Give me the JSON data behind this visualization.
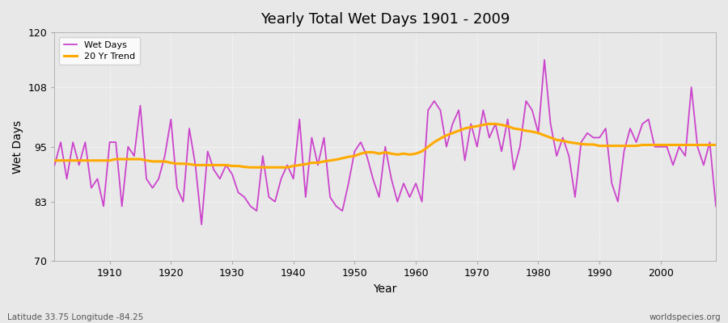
{
  "title": "Yearly Total Wet Days 1901 - 2009",
  "xlabel": "Year",
  "ylabel": "Wet Days",
  "subtitle_left": "Latitude 33.75 Longitude -84.25",
  "subtitle_right": "worldspecies.org",
  "ylim": [
    70,
    120
  ],
  "yticks": [
    70,
    83,
    95,
    108,
    120
  ],
  "line_color": "#cc44cc",
  "trend_color": "#ffaa00",
  "fig_bg_color": "#e8e8e8",
  "plot_bg_color": "#e8e8e8",
  "grid_color": "#ffffff",
  "years": [
    1901,
    1902,
    1903,
    1904,
    1905,
    1906,
    1907,
    1908,
    1909,
    1910,
    1911,
    1912,
    1913,
    1914,
    1915,
    1916,
    1917,
    1918,
    1919,
    1920,
    1921,
    1922,
    1923,
    1924,
    1925,
    1926,
    1927,
    1928,
    1929,
    1930,
    1931,
    1932,
    1933,
    1934,
    1935,
    1936,
    1937,
    1938,
    1939,
    1940,
    1941,
    1942,
    1943,
    1944,
    1945,
    1946,
    1947,
    1948,
    1949,
    1950,
    1951,
    1952,
    1953,
    1954,
    1955,
    1956,
    1957,
    1958,
    1959,
    1960,
    1961,
    1962,
    1963,
    1964,
    1965,
    1966,
    1967,
    1968,
    1969,
    1970,
    1971,
    1972,
    1973,
    1974,
    1975,
    1976,
    1977,
    1978,
    1979,
    1980,
    1981,
    1982,
    1983,
    1984,
    1985,
    1986,
    1987,
    1988,
    1989,
    1990,
    1991,
    1992,
    1993,
    1994,
    1995,
    1996,
    1997,
    1998,
    1999,
    2000,
    2001,
    2002,
    2003,
    2004,
    2005,
    2006,
    2007,
    2008,
    2009
  ],
  "wet_days": [
    91,
    96,
    88,
    96,
    91,
    96,
    86,
    88,
    82,
    96,
    96,
    82,
    95,
    93,
    104,
    88,
    86,
    88,
    93,
    101,
    86,
    83,
    99,
    91,
    78,
    94,
    90,
    88,
    91,
    89,
    85,
    84,
    82,
    81,
    93,
    84,
    83,
    88,
    91,
    88,
    101,
    84,
    97,
    91,
    97,
    84,
    82,
    81,
    87,
    94,
    96,
    93,
    88,
    84,
    95,
    88,
    83,
    87,
    84,
    87,
    83,
    103,
    105,
    103,
    95,
    100,
    103,
    92,
    100,
    95,
    103,
    97,
    100,
    94,
    101,
    90,
    95,
    105,
    103,
    98,
    114,
    100,
    93,
    97,
    93,
    84,
    96,
    98,
    97,
    97,
    99,
    87,
    83,
    94,
    99,
    96,
    100,
    101,
    95,
    95,
    95,
    91,
    95,
    93,
    108,
    95,
    91,
    96,
    82
  ],
  "trend_values": [
    92.0,
    92.0,
    92.0,
    92.0,
    92.0,
    92.0,
    92.0,
    92.0,
    92.0,
    92.0,
    92.3,
    92.3,
    92.3,
    92.3,
    92.3,
    92.0,
    91.8,
    91.8,
    91.8,
    91.5,
    91.3,
    91.3,
    91.2,
    91.0,
    91.0,
    91.0,
    91.0,
    91.0,
    91.0,
    90.8,
    90.8,
    90.6,
    90.5,
    90.5,
    90.5,
    90.5,
    90.5,
    90.5,
    90.5,
    90.8,
    91.0,
    91.2,
    91.5,
    91.5,
    91.8,
    92.0,
    92.2,
    92.5,
    92.8,
    93.0,
    93.5,
    93.8,
    93.8,
    93.5,
    93.8,
    93.5,
    93.3,
    93.5,
    93.3,
    93.5,
    94.0,
    95.0,
    96.0,
    96.8,
    97.5,
    98.0,
    98.5,
    99.0,
    99.3,
    99.5,
    99.8,
    100.0,
    100.0,
    99.8,
    99.5,
    99.0,
    98.8,
    98.5,
    98.3,
    98.0,
    97.5,
    97.0,
    96.5,
    96.3,
    96.0,
    95.8,
    95.6,
    95.5,
    95.5,
    95.2,
    95.2,
    95.2,
    95.2,
    95.2,
    95.2,
    95.2,
    95.4,
    95.4,
    95.4,
    95.4,
    95.4,
    95.4,
    95.4,
    95.4,
    95.4,
    95.4,
    95.4,
    95.4,
    95.4
  ]
}
